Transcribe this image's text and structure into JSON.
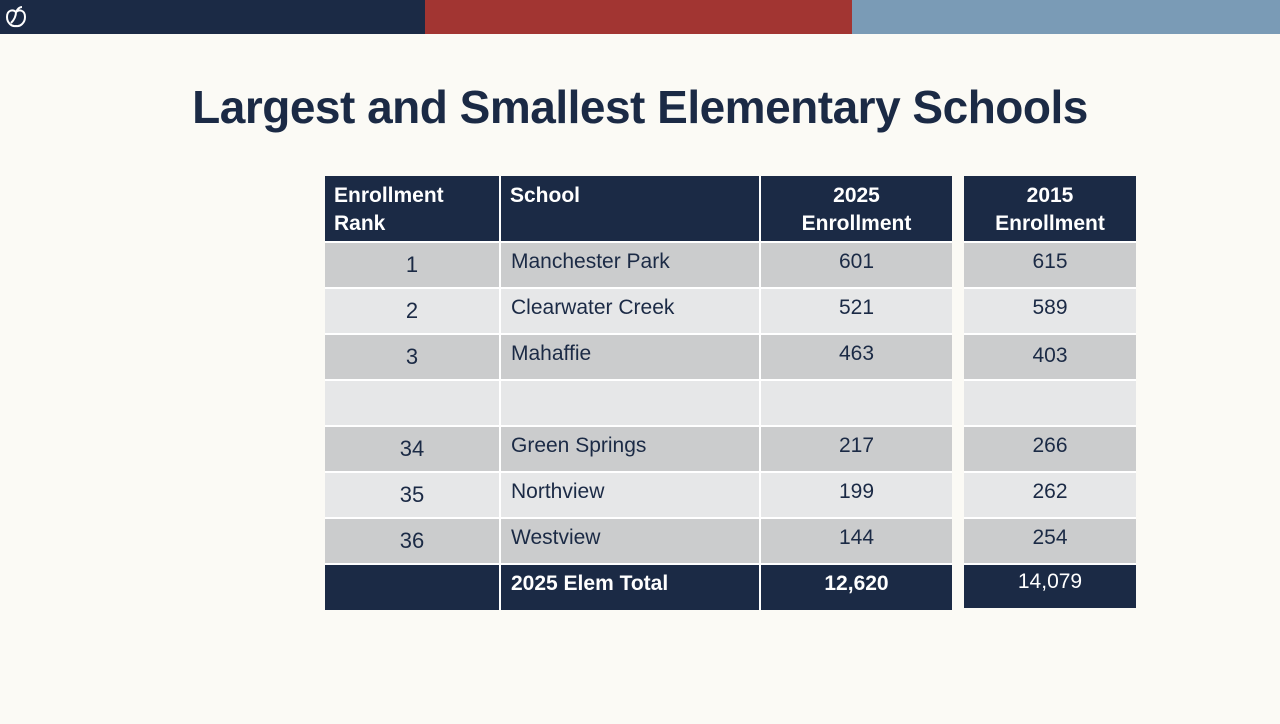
{
  "colors": {
    "navy": "#1b2a45",
    "red": "#a23532",
    "steel_blue": "#7a9bb6",
    "row_dark": "#cbcccd",
    "row_light": "#e6e7e8",
    "background": "#fbfaf5"
  },
  "header": {
    "logo_icon": "apple-logo-icon"
  },
  "title": "Largest and Smallest Elementary Schools",
  "table": {
    "headers": {
      "rank_line1": "Enrollment",
      "rank_line2": "Rank",
      "school": "School",
      "enroll_2025_line1": "2025",
      "enroll_2025_line2": "Enrollment",
      "enroll_2015_line1": "2015",
      "enroll_2015_line2": "Enrollment"
    },
    "rows": [
      {
        "rank": "1",
        "school": "Manchester Park",
        "enroll_2025": "601",
        "enroll_2015": "615"
      },
      {
        "rank": "2",
        "school": "Clearwater Creek",
        "enroll_2025": "521",
        "enroll_2015": "589"
      },
      {
        "rank": "3",
        "school": "Mahaffie",
        "enroll_2025": "463",
        "enroll_2015": "403"
      },
      {
        "rank": "",
        "school": "",
        "enroll_2025": "",
        "enroll_2015": ""
      },
      {
        "rank": "34",
        "school": "Green Springs",
        "enroll_2025": "217",
        "enroll_2015": "266"
      },
      {
        "rank": "35",
        "school": "Northview",
        "enroll_2025": "199",
        "enroll_2015": "262"
      },
      {
        "rank": "36",
        "school": "Westview",
        "enroll_2025": "144",
        "enroll_2015": "254"
      }
    ],
    "footer": {
      "label": "2025 Elem Total",
      "total_2025": "12,620",
      "total_2015": "14,079"
    }
  }
}
